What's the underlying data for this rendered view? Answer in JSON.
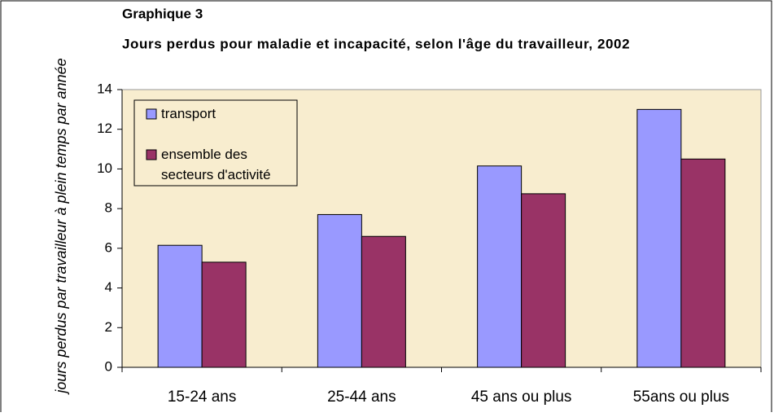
{
  "chart_data": {
    "type": "bar",
    "title": "Graphique 3",
    "subtitle": "Jours perdus pour maladie et incapacité, selon l'âge du travailleur,  2002",
    "y_label": "jours perdus par travailleur à plein temps par année",
    "categories": [
      "15-24  ans",
      "25-44 ans",
      "45 ans ou plus",
      "55ans ou plus"
    ],
    "series": [
      {
        "name": "transport",
        "color": "#9999ff",
        "values": [
          6.15,
          7.7,
          10.15,
          13.0
        ]
      },
      {
        "name": "ensemble des secteurs d'activité",
        "color": "#993366",
        "values": [
          5.3,
          6.6,
          8.75,
          10.5
        ]
      }
    ],
    "ylim": [
      0,
      14
    ],
    "yticks": [
      0,
      2,
      4,
      6,
      8,
      10,
      12,
      14
    ],
    "grid": false,
    "legend": "top-left"
  }
}
